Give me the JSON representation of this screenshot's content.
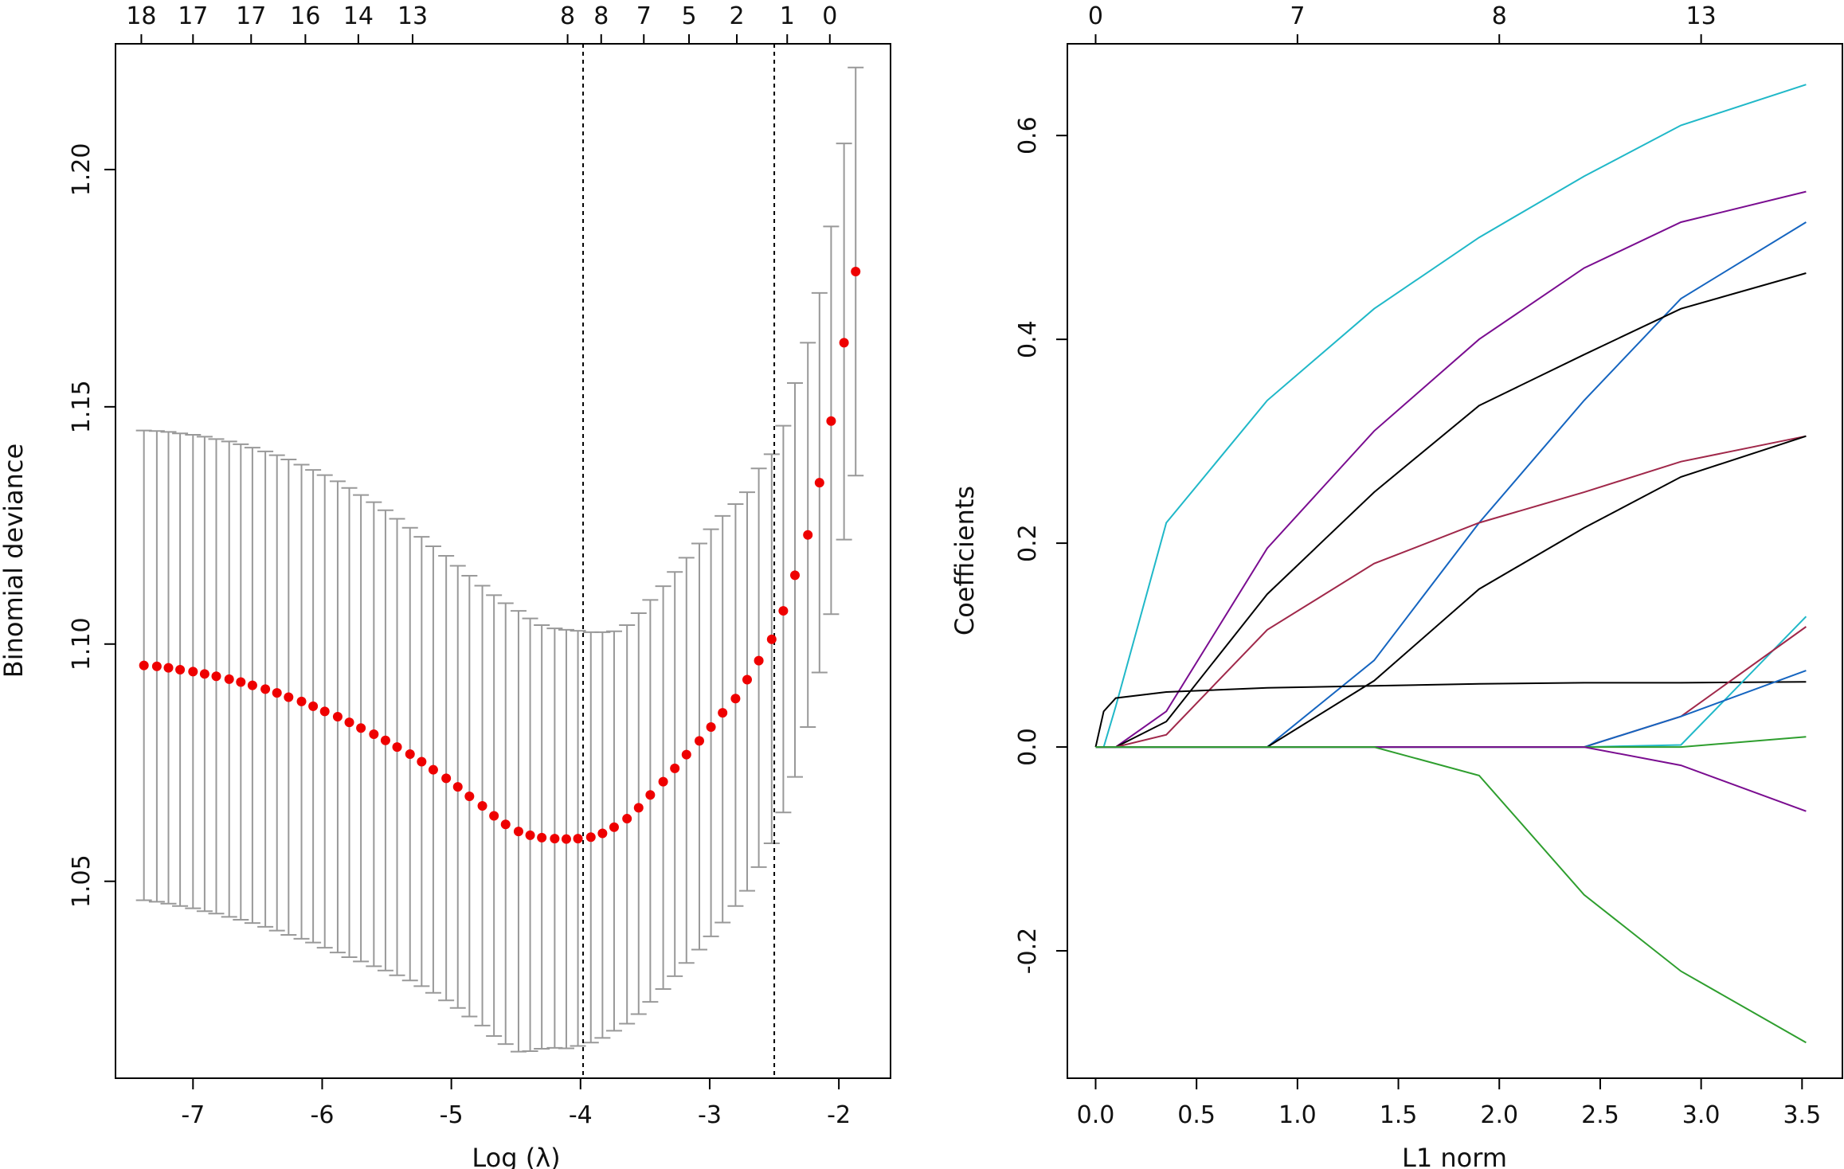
{
  "chart_data": [
    {
      "type": "scatter",
      "xlabel": "Log (λ)",
      "ylabel": "Binomial deviance",
      "xlim": [
        -7.6,
        -1.6
      ],
      "ylim": [
        1.0085,
        1.2265
      ],
      "x_ticks": [
        -7,
        -6,
        -5,
        -4,
        -3,
        -2
      ],
      "y_ticks": [
        1.05,
        1.1,
        1.15,
        1.2
      ],
      "top_ticks": [
        "18",
        "17",
        "17",
        "16",
        "14",
        "13",
        "8",
        "8",
        "7",
        "5",
        "2",
        "1",
        "0"
      ],
      "top_tick_x": [
        -7.4,
        -7.0,
        -6.55,
        -6.13,
        -5.72,
        -5.3,
        -4.1,
        -3.84,
        -3.51,
        -3.16,
        -2.79,
        -2.4,
        -2.07
      ],
      "vlines": [
        -3.98,
        -2.5
      ],
      "point_color": "#ee0000",
      "errorbar_color": "#999999",
      "series": [
        {
          "x": [
            -7.38,
            -7.28,
            -7.19,
            -7.1,
            -7.0,
            -6.91,
            -6.82,
            -6.72,
            -6.63,
            -6.54,
            -6.44,
            -6.35,
            -6.26,
            -6.16,
            -6.07,
            -5.98,
            -5.88,
            -5.79,
            -5.7,
            -5.6,
            -5.51,
            -5.42,
            -5.32,
            -5.23,
            -5.14,
            -5.04,
            -4.95,
            -4.86,
            -4.76,
            -4.67,
            -4.58,
            -4.48,
            -4.39,
            -4.3,
            -4.2,
            -4.11,
            -4.02,
            -3.92,
            -3.83,
            -3.74,
            -3.64,
            -3.55,
            -3.46,
            -3.36,
            -3.27,
            -3.18,
            -3.08,
            -2.99,
            -2.9,
            -2.8,
            -2.71,
            -2.62,
            -2.52,
            -2.43,
            -2.34,
            -2.24,
            -2.15,
            -2.06,
            -1.96,
            -1.87
          ],
          "y": [
            1.0955,
            1.0953,
            1.095,
            1.0946,
            1.0942,
            1.0937,
            1.0932,
            1.0926,
            1.092,
            1.0913,
            1.0905,
            1.0897,
            1.0888,
            1.0879,
            1.0869,
            1.0858,
            1.0847,
            1.0835,
            1.0823,
            1.081,
            1.0797,
            1.0783,
            1.0768,
            1.0752,
            1.0735,
            1.0717,
            1.0699,
            1.0679,
            1.0659,
            1.0638,
            1.062,
            1.0605,
            1.0597,
            1.0592,
            1.059,
            1.0589,
            1.059,
            1.0593,
            1.0601,
            1.0614,
            1.0632,
            1.0655,
            1.0682,
            1.071,
            1.0738,
            1.0767,
            1.0796,
            1.0825,
            1.0855,
            1.0885,
            1.0925,
            1.0965,
            1.101,
            1.107,
            1.1145,
            1.123,
            1.134,
            1.147,
            1.1635,
            1.1785
          ],
          "upper": [
            1.145,
            1.1449,
            1.1447,
            1.1444,
            1.1441,
            1.1437,
            1.1432,
            1.1427,
            1.1421,
            1.1414,
            1.1406,
            1.1398,
            1.1389,
            1.1378,
            1.1367,
            1.1356,
            1.1343,
            1.1329,
            1.1314,
            1.1299,
            1.1282,
            1.1264,
            1.1245,
            1.1226,
            1.1206,
            1.1186,
            1.1165,
            1.1144,
            1.1123,
            1.1103,
            1.1086,
            1.107,
            1.1054,
            1.104,
            1.1033,
            1.103,
            1.1028,
            1.1025,
            1.1025,
            1.1027,
            1.104,
            1.1065,
            1.1093,
            1.1122,
            1.1152,
            1.1182,
            1.1212,
            1.1242,
            1.127,
            1.1295,
            1.132,
            1.137,
            1.14,
            1.146,
            1.155,
            1.1635,
            1.174,
            1.188,
            1.2055,
            1.2215
          ],
          "lower": [
            1.046,
            1.0457,
            1.0453,
            1.0448,
            1.0443,
            1.0437,
            1.0432,
            1.0425,
            1.0419,
            1.0412,
            1.0404,
            1.0396,
            1.0387,
            1.0379,
            1.0371,
            1.036,
            1.035,
            1.034,
            1.0331,
            1.0321,
            1.0312,
            1.0302,
            1.0291,
            1.0279,
            1.0265,
            1.0249,
            1.0233,
            1.0215,
            1.0196,
            1.0174,
            1.0157,
            1.0141,
            1.0142,
            1.0147,
            1.0149,
            1.0148,
            1.0153,
            1.016,
            1.017,
            1.0185,
            1.02,
            1.022,
            1.0246,
            1.0273,
            1.03,
            1.0328,
            1.0356,
            1.0384,
            1.0413,
            1.0448,
            1.048,
            1.053,
            1.058,
            1.0645,
            1.072,
            1.0825,
            1.094,
            1.1063,
            1.122,
            1.1355
          ]
        }
      ]
    },
    {
      "type": "line",
      "xlabel": "L1 norm",
      "ylabel": "Coefficients",
      "xlim": [
        -0.14,
        3.7
      ],
      "ylim": [
        -0.325,
        0.69
      ],
      "x_ticks": [
        0.0,
        0.5,
        1.0,
        1.5,
        2.0,
        2.5,
        3.0,
        3.5
      ],
      "y_ticks": [
        -0.2,
        0.0,
        0.2,
        0.4,
        0.6
      ],
      "top_ticks": [
        "0",
        "7",
        "8",
        "13"
      ],
      "top_tick_x": [
        0.0,
        1.0,
        2.0,
        3.0
      ],
      "x": [
        0,
        0.04,
        0.1,
        0.35,
        0.85,
        1.38,
        1.9,
        2.42,
        2.9,
        3.52
      ],
      "series": [
        {
          "color": "#20b8c8",
          "values": [
            0,
            0,
            0.04,
            0.22,
            0.34,
            0.43,
            0.5,
            0.56,
            0.61,
            0.65
          ]
        },
        {
          "color": "#7a0d90",
          "values": [
            0,
            0,
            0,
            0.035,
            0.195,
            0.31,
            0.4,
            0.47,
            0.515,
            0.545
          ]
        },
        {
          "color": "#1565c0",
          "values": [
            0,
            0,
            0,
            0,
            0,
            0.085,
            0.22,
            0.34,
            0.44,
            0.515
          ]
        },
        {
          "color": "#000000",
          "values": [
            0,
            0,
            0,
            0.025,
            0.15,
            0.25,
            0.335,
            0.385,
            0.43,
            0.465
          ]
        },
        {
          "color": "#a0284a",
          "values": [
            0,
            0,
            0,
            0.012,
            0.115,
            0.18,
            0.22,
            0.25,
            0.28,
            0.305
          ]
        },
        {
          "color": "#000000",
          "values": [
            0,
            0,
            0,
            0,
            0,
            0.065,
            0.155,
            0.215,
            0.265,
            0.305
          ]
        },
        {
          "color": "#000000",
          "values": [
            0,
            0.035,
            0.048,
            0.054,
            0.058,
            0.06,
            0.062,
            0.063,
            0.063,
            0.064
          ]
        },
        {
          "color": "#20b8c8",
          "values": [
            0,
            0,
            0,
            0,
            0,
            0,
            0,
            0,
            0.002,
            0.128
          ]
        },
        {
          "color": "#a0284a",
          "values": [
            0,
            0,
            0,
            0,
            0,
            0,
            0,
            0,
            0.03,
            0.118
          ]
        },
        {
          "color": "#1565c0",
          "values": [
            0,
            0,
            0,
            0,
            0,
            0,
            0,
            0,
            0.03,
            0.075
          ]
        },
        {
          "color": "#2e9e2e",
          "values": [
            0,
            0,
            0,
            0,
            0,
            0,
            0,
            0,
            0,
            0.01
          ]
        },
        {
          "color": "#7a0d90",
          "values": [
            0,
            0,
            0,
            0,
            0,
            0,
            0,
            0,
            -0.018,
            -0.063
          ]
        },
        {
          "color": "#2e9e2e",
          "values": [
            0,
            0,
            0,
            0,
            0,
            0,
            -0.028,
            -0.145,
            -0.22,
            -0.29
          ]
        }
      ]
    }
  ]
}
